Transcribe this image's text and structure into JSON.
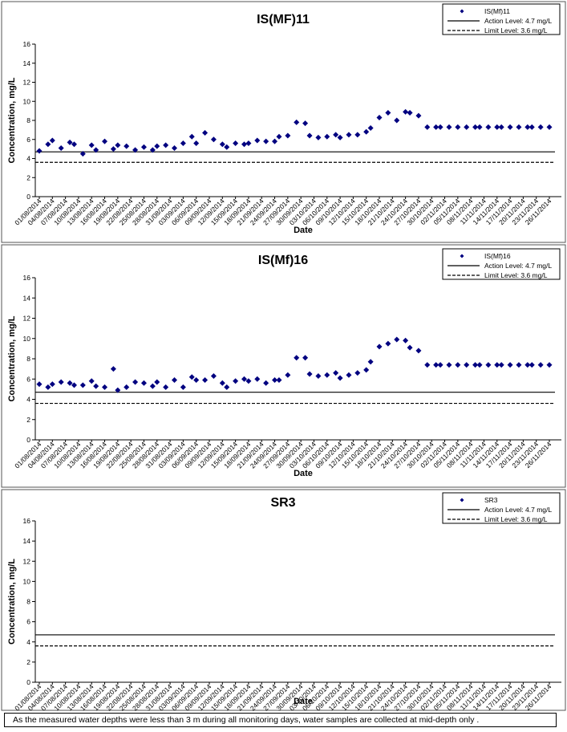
{
  "chart_data": [
    {
      "type": "scatter",
      "title": "IS(MF)11",
      "xlabel": "Date",
      "ylabel": "Concentration, mg/L",
      "ylim": [
        0,
        16
      ],
      "y_ticks": [
        0,
        2,
        4,
        6,
        8,
        10,
        12,
        14,
        16
      ],
      "x_tick_labels": [
        "01/08/2014",
        "04/08/2014",
        "07/08/2014",
        "10/08/2014",
        "13/08/2014",
        "16/08/2014",
        "19/08/2014",
        "22/08/2014",
        "25/08/2014",
        "28/08/2014",
        "31/08/2014",
        "03/09/2014",
        "06/09/2014",
        "09/09/2014",
        "12/09/2014",
        "15/09/2014",
        "18/09/2014",
        "21/09/2014",
        "24/09/2014",
        "27/09/2014",
        "30/09/2014",
        "03/10/2014",
        "06/10/2014",
        "09/10/2014",
        "12/10/2014",
        "15/10/2014",
        "18/10/2014",
        "21/10/2014",
        "24/10/2014",
        "27/10/2014",
        "30/10/2014",
        "02/11/2014",
        "05/11/2014",
        "08/11/2014",
        "11/11/2014",
        "14/11/2014",
        "17/11/2014",
        "20/11/2014",
        "23/11/2014",
        "26/11/2014"
      ],
      "series": [
        {
          "name": "IS(Mf)11",
          "x": [
            "01/08/2014",
            "03/08/2014",
            "04/08/2014",
            "06/08/2014",
            "08/08/2014",
            "09/08/2014",
            "11/08/2014",
            "13/08/2014",
            "14/08/2014",
            "16/08/2014",
            "18/08/2014",
            "19/08/2014",
            "21/08/2014",
            "23/08/2014",
            "25/08/2014",
            "27/08/2014",
            "28/08/2014",
            "30/08/2014",
            "01/09/2014",
            "03/09/2014",
            "05/09/2014",
            "06/09/2014",
            "08/09/2014",
            "10/09/2014",
            "12/09/2014",
            "13/09/2014",
            "15/09/2014",
            "17/09/2014",
            "18/09/2014",
            "20/09/2014",
            "22/09/2014",
            "24/09/2014",
            "25/09/2014",
            "27/09/2014",
            "29/09/2014",
            "01/10/2014",
            "02/10/2014",
            "04/10/2014",
            "06/10/2014",
            "08/10/2014",
            "09/10/2014",
            "11/10/2014",
            "13/10/2014",
            "15/10/2014",
            "16/10/2014",
            "18/10/2014",
            "20/10/2014",
            "22/10/2014",
            "24/10/2014",
            "25/10/2014",
            "27/10/2014",
            "29/10/2014",
            "31/10/2014",
            "01/11/2014",
            "03/11/2014",
            "05/11/2014",
            "07/11/2014",
            "09/11/2014",
            "10/11/2014",
            "12/11/2014",
            "14/11/2014",
            "15/11/2014",
            "17/11/2014",
            "19/11/2014",
            "21/11/2014",
            "22/11/2014",
            "24/11/2014",
            "26/11/2014"
          ],
          "values": [
            4.8,
            5.5,
            5.9,
            5.1,
            5.7,
            5.5,
            4.5,
            5.4,
            4.9,
            5.8,
            5.0,
            5.4,
            5.3,
            4.9,
            5.2,
            4.9,
            5.3,
            5.4,
            5.1,
            5.6,
            6.3,
            5.6,
            6.7,
            6.0,
            5.5,
            5.2,
            5.6,
            5.5,
            5.6,
            5.9,
            5.8,
            5.8,
            6.3,
            6.4,
            7.8,
            7.7,
            6.4,
            6.2,
            6.3,
            6.5,
            6.2,
            6.5,
            6.5,
            6.8,
            7.2,
            8.3,
            8.8,
            8.0,
            8.9,
            8.8,
            8.5,
            7.3,
            7.3,
            7.3,
            7.3,
            7.3,
            7.3,
            7.3,
            7.3,
            7.3,
            7.3,
            7.3,
            7.3,
            7.3,
            7.3,
            7.3,
            7.3,
            7.3
          ]
        }
      ],
      "lines": [
        {
          "name": "Action Level: 4.7 mg/L",
          "value": 4.7,
          "style": "solid"
        },
        {
          "name": "Limit Level: 3.6 mg/L",
          "value": 3.6,
          "style": "dashed"
        }
      ],
      "legend_position": "top-right",
      "grid": false
    },
    {
      "type": "scatter",
      "title": "IS(Mf)16",
      "xlabel": "Date",
      "ylabel": "Concentration, mg/L",
      "ylim": [
        0,
        16
      ],
      "y_ticks": [
        0,
        2,
        4,
        6,
        8,
        10,
        12,
        14,
        16
      ],
      "x_tick_labels": [
        "01/08/2014",
        "04/08/2014",
        "07/08/2014",
        "10/08/2014",
        "13/08/2014",
        "16/08/2014",
        "19/08/2014",
        "22/08/2014",
        "25/08/2014",
        "28/08/2014",
        "31/08/2014",
        "03/09/2014",
        "06/09/2014",
        "09/09/2014",
        "12/09/2014",
        "15/09/2014",
        "18/09/2014",
        "21/09/2014",
        "24/09/2014",
        "27/09/2014",
        "30/09/2014",
        "03/10/2014",
        "06/10/2014",
        "09/10/2014",
        "12/10/2014",
        "15/10/2014",
        "18/10/2014",
        "21/10/2014",
        "24/10/2014",
        "27/10/2014",
        "30/10/2014",
        "02/11/2014",
        "05/11/2014",
        "08/11/2014",
        "11/11/2014",
        "14/11/2014",
        "17/11/2014",
        "20/11/2014",
        "23/11/2014",
        "26/11/2014"
      ],
      "series": [
        {
          "name": "IS(Mf)16",
          "x": [
            "01/08/2014",
            "03/08/2014",
            "04/08/2014",
            "06/08/2014",
            "08/08/2014",
            "09/08/2014",
            "11/08/2014",
            "13/08/2014",
            "14/08/2014",
            "16/08/2014",
            "18/08/2014",
            "19/08/2014",
            "21/08/2014",
            "23/08/2014",
            "25/08/2014",
            "27/08/2014",
            "28/08/2014",
            "30/08/2014",
            "01/09/2014",
            "03/09/2014",
            "05/09/2014",
            "06/09/2014",
            "08/09/2014",
            "10/09/2014",
            "12/09/2014",
            "13/09/2014",
            "15/09/2014",
            "17/09/2014",
            "18/09/2014",
            "20/09/2014",
            "22/09/2014",
            "24/09/2014",
            "25/09/2014",
            "27/09/2014",
            "29/09/2014",
            "01/10/2014",
            "02/10/2014",
            "04/10/2014",
            "06/10/2014",
            "08/10/2014",
            "09/10/2014",
            "11/10/2014",
            "13/10/2014",
            "15/10/2014",
            "16/10/2014",
            "18/10/2014",
            "20/10/2014",
            "22/10/2014",
            "24/10/2014",
            "25/10/2014",
            "27/10/2014",
            "29/10/2014",
            "31/10/2014",
            "01/11/2014",
            "03/11/2014",
            "05/11/2014",
            "07/11/2014",
            "09/11/2014",
            "10/11/2014",
            "12/11/2014",
            "14/11/2014",
            "15/11/2014",
            "17/11/2014",
            "19/11/2014",
            "21/11/2014",
            "22/11/2014",
            "24/11/2014",
            "26/11/2014"
          ],
          "values": [
            5.5,
            5.2,
            5.5,
            5.7,
            5.6,
            5.4,
            5.4,
            5.8,
            5.3,
            5.2,
            7.0,
            4.9,
            5.2,
            5.7,
            5.6,
            5.3,
            5.7,
            5.2,
            5.9,
            5.2,
            6.2,
            5.9,
            5.9,
            6.3,
            5.6,
            5.2,
            5.8,
            6.0,
            5.8,
            6.0,
            5.6,
            5.9,
            5.9,
            6.4,
            8.1,
            8.1,
            6.5,
            6.3,
            6.4,
            6.6,
            6.1,
            6.4,
            6.6,
            6.9,
            7.7,
            9.2,
            9.5,
            9.9,
            9.8,
            9.1,
            8.8,
            7.4,
            7.4,
            7.4,
            7.4,
            7.4,
            7.4,
            7.4,
            7.4,
            7.4,
            7.4,
            7.4,
            7.4,
            7.4,
            7.4,
            7.4,
            7.4,
            7.4
          ]
        }
      ],
      "lines": [
        {
          "name": "Action Level: 4.7 mg/L",
          "value": 4.7,
          "style": "solid"
        },
        {
          "name": "Limit Level: 3.6 mg/L",
          "value": 3.6,
          "style": "dashed"
        }
      ],
      "legend_position": "top-right",
      "grid": false
    },
    {
      "type": "scatter",
      "title": "SR3",
      "xlabel": "Date",
      "ylabel": "Concentration, mg/L",
      "ylim": [
        0,
        16
      ],
      "y_ticks": [
        0,
        2,
        4,
        6,
        8,
        10,
        12,
        14,
        16
      ],
      "x_tick_labels": [
        "01/08/2014",
        "04/08/2014",
        "07/08/2014",
        "10/08/2014",
        "13/08/2014",
        "16/08/2014",
        "19/08/2014",
        "22/08/2014",
        "25/08/2014",
        "28/08/2014",
        "31/08/2014",
        "03/09/2014",
        "06/09/2014",
        "09/09/2014",
        "12/09/2014",
        "15/09/2014",
        "18/09/2014",
        "21/09/2014",
        "24/09/2014",
        "27/09/2014",
        "30/09/2014",
        "03/10/2014",
        "06/10/2014",
        "09/10/2014",
        "12/10/2014",
        "15/10/2014",
        "18/10/2014",
        "21/10/2014",
        "24/10/2014",
        "27/10/2014",
        "30/10/2014",
        "02/11/2014",
        "05/11/2014",
        "08/11/2014",
        "11/11/2014",
        "14/11/2014",
        "17/11/2014",
        "20/11/2014",
        "23/11/2014",
        "26/11/2014"
      ],
      "series": [
        {
          "name": "SR3",
          "x": [],
          "values": []
        }
      ],
      "lines": [
        {
          "name": "Action Level: 4.7 mg/L",
          "value": 4.7,
          "style": "solid"
        },
        {
          "name": "Limit Level: 3.6 mg/L",
          "value": 3.6,
          "style": "dashed"
        }
      ],
      "legend_position": "top-right",
      "grid": false
    }
  ],
  "note": "As the measured water depths were less than 3 m during all monitoring days, water samples are collected  at mid-depth only ."
}
